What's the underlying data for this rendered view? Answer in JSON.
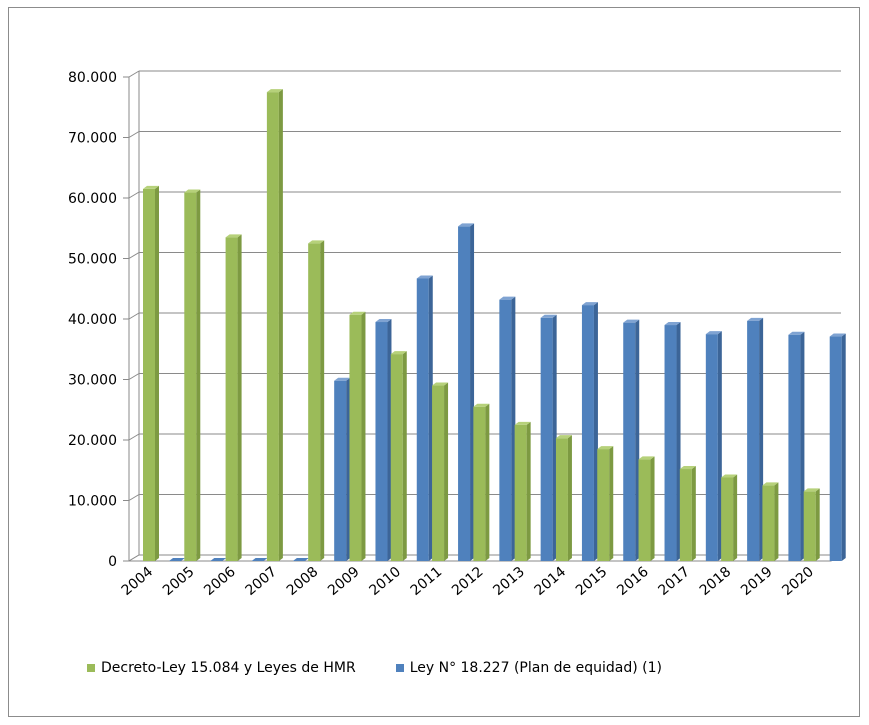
{
  "chart_data": {
    "type": "bar",
    "categories": [
      "2004",
      "2005",
      "2006",
      "2007",
      "2008",
      "2009",
      "2010",
      "2011",
      "2012",
      "2013",
      "2014",
      "2015",
      "2016",
      "2017",
      "2018",
      "2019",
      "2020"
    ],
    "series": [
      {
        "name": "Decreto-Ley 15.084 y Leyes de HMR",
        "color": "#9bbb59",
        "values": [
          61500,
          60900,
          53500,
          77500,
          52500,
          40700,
          34200,
          29000,
          25500,
          22500,
          20300,
          18500,
          16800,
          15200,
          13800,
          12500,
          11500
        ]
      },
      {
        "name": "Ley N° 18.227 (Plan de equidad) (1)",
        "color": "#4f81bd",
        "values": [
          0,
          0,
          0,
          0,
          29800,
          39500,
          46700,
          55300,
          43200,
          40200,
          42300,
          39400,
          39000,
          37500,
          39700,
          37400,
          37100
        ]
      }
    ],
    "y_ticks": [
      "0",
      "10.000",
      "20.000",
      "30.000",
      "40.000",
      "50.000",
      "60.000",
      "70.000",
      "80.000"
    ],
    "ylim": [
      0,
      80000
    ],
    "grid": true,
    "legend_position": "bottom-left"
  }
}
